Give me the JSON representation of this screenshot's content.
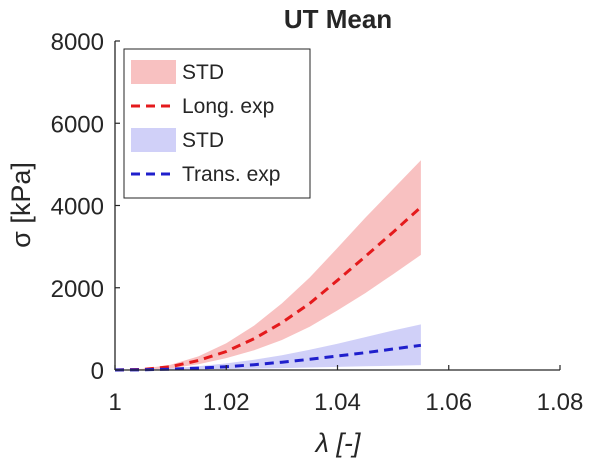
{
  "chart_data": {
    "type": "area",
    "title": "UT Mean",
    "xlabel": "λ [-]",
    "ylabel": "σ [kPa]",
    "xlim": [
      1,
      1.08
    ],
    "ylim": [
      0,
      8000
    ],
    "xticks": [
      1,
      1.02,
      1.04,
      1.06,
      1.08
    ],
    "xtick_labels": [
      "1",
      "1.02",
      "1.04",
      "1.06",
      "1.08"
    ],
    "yticks": [
      0,
      2000,
      4000,
      6000,
      8000
    ],
    "ytick_labels": [
      "0",
      "2000",
      "4000",
      "6000",
      "8000"
    ],
    "grid": false,
    "legend_position": "top-left",
    "x": [
      1.0,
      1.005,
      1.01,
      1.015,
      1.02,
      1.025,
      1.03,
      1.035,
      1.04,
      1.045,
      1.05,
      1.055
    ],
    "series": [
      {
        "name": "Long. exp",
        "color": "#e41a1c",
        "style": "dashed",
        "values": [
          0,
          15,
          80,
          230,
          450,
          760,
          1150,
          1620,
          2180,
          2760,
          3350,
          3960
        ]
      },
      {
        "name": "Trans. exp",
        "color": "#1f1fcc",
        "style": "dashed",
        "values": [
          0,
          5,
          20,
          45,
          80,
          130,
          190,
          260,
          340,
          420,
          510,
          600
        ]
      }
    ],
    "bands": [
      {
        "name": "STD",
        "color": "#f7b6b6",
        "upper": [
          0,
          30,
          130,
          330,
          650,
          1080,
          1620,
          2250,
          2970,
          3700,
          4400,
          5100
        ],
        "lower": [
          0,
          5,
          40,
          140,
          290,
          480,
          730,
          1050,
          1450,
          1870,
          2330,
          2800
        ]
      },
      {
        "name": "STD",
        "color": "#c8c8f7",
        "upper": [
          0,
          10,
          40,
          90,
          160,
          250,
          360,
          490,
          640,
          800,
          960,
          1110
        ],
        "lower": [
          0,
          2,
          8,
          15,
          25,
          35,
          45,
          60,
          75,
          90,
          105,
          120
        ]
      }
    ],
    "legend": [
      {
        "label": "STD",
        "kind": "band",
        "ref": "band-0"
      },
      {
        "label": "Long. exp",
        "kind": "line",
        "ref": "series-0"
      },
      {
        "label": "STD",
        "kind": "band",
        "ref": "band-1"
      },
      {
        "label": "Trans. exp",
        "kind": "line",
        "ref": "series-1"
      }
    ]
  }
}
